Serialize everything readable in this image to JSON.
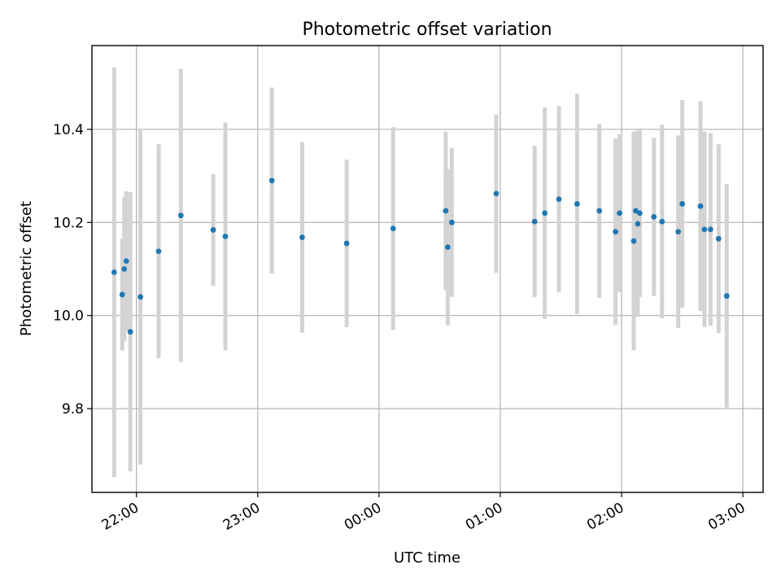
{
  "chart_data": {
    "type": "scatter",
    "title": "Photometric offset variation",
    "xlabel": "UTC time",
    "ylabel": "Photometric offset",
    "x_unit": "hours UTC (24 + h after midnight)",
    "xlim": [
      "21:38",
      "03:10"
    ],
    "ylim": [
      9.62,
      10.58
    ],
    "x_ticks": [
      "22:00",
      "23:00",
      "00:00",
      "01:00",
      "02:00",
      "03:00"
    ],
    "y_ticks": [
      "9.8",
      "10.0",
      "10.2",
      "10.4"
    ],
    "grid": true,
    "point_color": "#1f77b4",
    "errorbar_color": "#d3d3d3",
    "points": [
      {
        "x": "21:49",
        "y": 10.093,
        "err": 0.44
      },
      {
        "x": "21:53",
        "y": 10.045,
        "err": 0.12
      },
      {
        "x": "21:54",
        "y": 10.1,
        "err": 0.155
      },
      {
        "x": "21:55",
        "y": 10.117,
        "err": 0.15
      },
      {
        "x": "21:57",
        "y": 9.965,
        "err": 0.3
      },
      {
        "x": "22:02",
        "y": 10.04,
        "err": 0.36
      },
      {
        "x": "22:11",
        "y": 10.138,
        "err": 0.23
      },
      {
        "x": "22:22",
        "y": 10.215,
        "err": 0.315
      },
      {
        "x": "22:38",
        "y": 10.184,
        "err": 0.12
      },
      {
        "x": "22:44",
        "y": 10.17,
        "err": 0.245
      },
      {
        "x": "23:07",
        "y": 10.29,
        "err": 0.2
      },
      {
        "x": "23:22",
        "y": 10.168,
        "err": 0.205
      },
      {
        "x": "23:44",
        "y": 10.155,
        "err": 0.18
      },
      {
        "x": "00:07",
        "y": 10.187,
        "err": 0.218
      },
      {
        "x": "00:33",
        "y": 10.225,
        "err": 0.17
      },
      {
        "x": "00:34",
        "y": 10.147,
        "err": 0.168
      },
      {
        "x": "00:36",
        "y": 10.2,
        "err": 0.16
      },
      {
        "x": "00:58",
        "y": 10.262,
        "err": 0.17
      },
      {
        "x": "01:17",
        "y": 10.202,
        "err": 0.163
      },
      {
        "x": "01:22",
        "y": 10.22,
        "err": 0.227
      },
      {
        "x": "01:29",
        "y": 10.25,
        "err": 0.2
      },
      {
        "x": "01:38",
        "y": 10.24,
        "err": 0.237
      },
      {
        "x": "01:49",
        "y": 10.225,
        "err": 0.187
      },
      {
        "x": "01:57",
        "y": 10.18,
        "err": 0.2
      },
      {
        "x": "01:59",
        "y": 10.22,
        "err": 0.17
      },
      {
        "x": "02:06",
        "y": 10.16,
        "err": 0.235
      },
      {
        "x": "02:07",
        "y": 10.225,
        "err": 0.17
      },
      {
        "x": "02:08",
        "y": 10.197,
        "err": 0.2
      },
      {
        "x": "02:09",
        "y": 10.22,
        "err": 0.18
      },
      {
        "x": "02:16",
        "y": 10.212,
        "err": 0.17
      },
      {
        "x": "02:20",
        "y": 10.202,
        "err": 0.208
      },
      {
        "x": "02:28",
        "y": 10.18,
        "err": 0.207
      },
      {
        "x": "02:30",
        "y": 10.24,
        "err": 0.223
      },
      {
        "x": "02:39",
        "y": 10.235,
        "err": 0.225
      },
      {
        "x": "02:41",
        "y": 10.185,
        "err": 0.21
      },
      {
        "x": "02:44",
        "y": 10.185,
        "err": 0.207
      },
      {
        "x": "02:48",
        "y": 10.165,
        "err": 0.203
      },
      {
        "x": "02:52",
        "y": 10.042,
        "err": 0.24
      }
    ]
  }
}
